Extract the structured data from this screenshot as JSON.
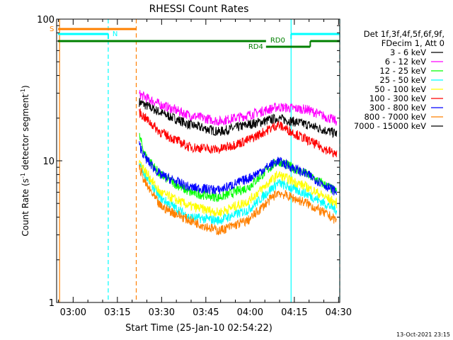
{
  "chart_data": {
    "type": "line",
    "title": "RHESSI Count Rates",
    "xlabel": "Start Time (25-Jan-10 02:54:22)",
    "ylabel_base": "Count Rate (s",
    "ylabel_sup1": "-1",
    "ylabel_mid": " detector segment",
    "ylabel_sup2": "-1",
    "ylabel_end": ")",
    "y_scale": "log",
    "ylim": [
      1,
      100
    ],
    "xlim_minutes": [
      0,
      96
    ],
    "x_start_clock": "02:54:22",
    "x_ticks": [
      {
        "label": "03:00",
        "minute": 5.6
      },
      {
        "label": "03:15",
        "minute": 20.6
      },
      {
        "label": "03:30",
        "minute": 35.6
      },
      {
        "label": "03:45",
        "minute": 50.6
      },
      {
        "label": "04:00",
        "minute": 65.6
      },
      {
        "label": "04:15",
        "minute": 80.6
      },
      {
        "label": "04:30",
        "minute": 95.6
      }
    ],
    "y_ticks": [
      {
        "label": "1",
        "value": 1
      },
      {
        "label": "10",
        "value": 10
      },
      {
        "label": "100",
        "value": 100
      }
    ],
    "legend_header": [
      "Det 1f,3f,4f,5f,6f,9f,",
      "FDecim 1, Att 0"
    ],
    "legend_placement": "right",
    "series": [
      {
        "name": "3 - 6 keV",
        "color": "#000000",
        "x": [
          28,
          35,
          45,
          55,
          65,
          75,
          85,
          95
        ],
        "y": [
          26,
          22,
          18,
          16,
          18,
          20,
          18,
          15.5
        ]
      },
      {
        "name": "6 - 12 keV",
        "color": "#ff00ff",
        "x": [
          28,
          35,
          45,
          55,
          65,
          75,
          85,
          95
        ],
        "y": [
          29.5,
          25,
          21,
          19,
          21,
          24,
          23,
          19
        ]
      },
      {
        "name": "12 - 25 keV",
        "color": "#00ff00",
        "x": [
          28,
          30,
          35,
          45,
          55,
          65,
          75,
          85,
          95
        ],
        "y": [
          15,
          11,
          8,
          6,
          5.5,
          6.5,
          10,
          8,
          6
        ]
      },
      {
        "name": "25 - 50 keV",
        "color": "#00ffff",
        "x": [
          28,
          30,
          35,
          45,
          55,
          65,
          75,
          85,
          95
        ],
        "y": [
          9.5,
          8,
          5.5,
          4,
          3.8,
          4.5,
          7,
          5.8,
          4.5
        ]
      },
      {
        "name": "50 - 100 keV",
        "color": "#ffff00",
        "x": [
          28,
          30,
          35,
          45,
          55,
          65,
          75,
          85,
          95
        ],
        "y": [
          10,
          8.5,
          6,
          4.8,
          4.3,
          5.2,
          8,
          6.5,
          5
        ]
      },
      {
        "name": "100 - 300 keV",
        "color": "#ff0000",
        "x": [
          28,
          35,
          45,
          55,
          65,
          75,
          85,
          95
        ],
        "y": [
          22,
          16,
          12.5,
          12,
          14,
          18,
          14,
          11
        ]
      },
      {
        "name": "300 - 800 keV",
        "color": "#0000ff",
        "x": [
          28,
          30,
          35,
          45,
          55,
          65,
          75,
          85,
          95
        ],
        "y": [
          13,
          10.5,
          8,
          6.5,
          6.2,
          7.5,
          10,
          8,
          6
        ]
      },
      {
        "name": "800 - 7000 keV",
        "color": "#ff8000",
        "x": [
          28,
          30,
          35,
          45,
          55,
          65,
          75,
          85,
          95
        ],
        "y": [
          9,
          7,
          4.8,
          3.8,
          3.2,
          3.8,
          6,
          5,
          3.8
        ]
      },
      {
        "name": "7000 - 15000 keV",
        "color": "#000000",
        "x": [],
        "y": []
      }
    ],
    "annotations": {
      "S": {
        "label": "S",
        "color": "#ff8000",
        "start": 0.5,
        "end": 27
      },
      "N": {
        "label": "N",
        "color": "#00ffff",
        "start": 0.5,
        "end": 17.5,
        "start2": 79.5,
        "end2": 96
      },
      "RD0": {
        "label": "RD0",
        "color": "#008000",
        "start": 0.5,
        "end": 71,
        "start2": 86,
        "end2": 96
      },
      "RD4": {
        "label": "RD4",
        "color": "#008000",
        "start": 71,
        "end": 86
      }
    },
    "vlines": [
      {
        "minute": 1.0,
        "color": "#ff8000",
        "style": "solid"
      },
      {
        "minute": 17.5,
        "color": "#00ffff",
        "style": "dashed"
      },
      {
        "minute": 27.0,
        "color": "#ff8000",
        "style": "dashed"
      },
      {
        "minute": 79.5,
        "color": "#00ffff",
        "style": "solid"
      },
      {
        "minute": 96.0,
        "color": "#00ffff",
        "style": "dashed"
      }
    ],
    "footer_date": "13-Oct-2021 23:15"
  }
}
